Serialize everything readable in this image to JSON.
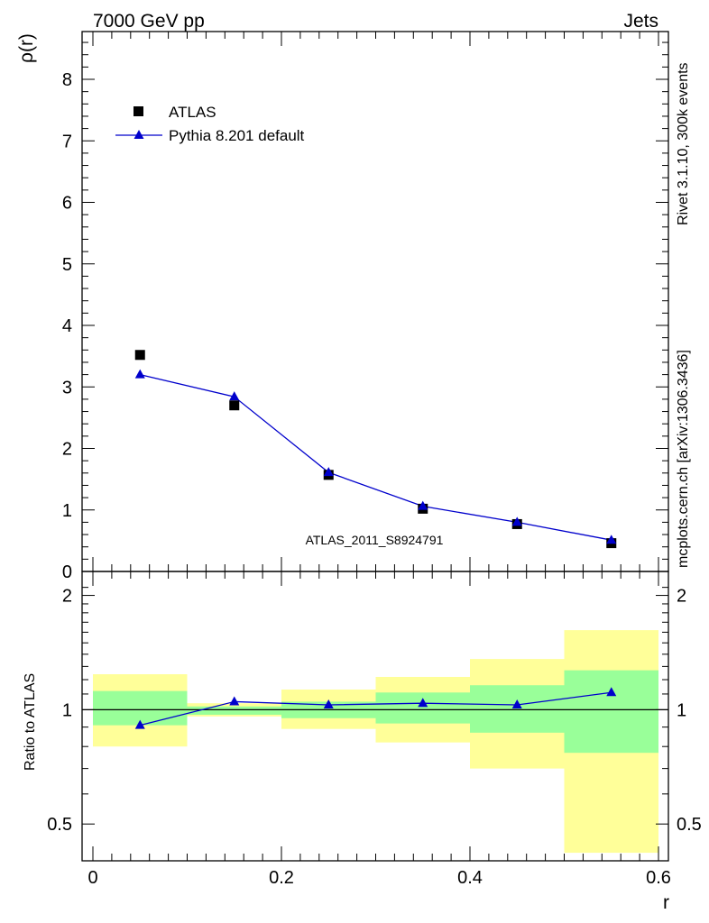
{
  "header": {
    "left": "7000 GeV pp",
    "right": "Jets"
  },
  "side_text": {
    "rivet": "Rivet 3.1.10,  300k events",
    "mcplots": "mcplots.cern.ch [arXiv:1306.3436]"
  },
  "analysis_label": "ATLAS_2011_S8924791",
  "chart_data": [
    {
      "type": "scatter",
      "ylabel": "ρ(r)",
      "xlabel": "r",
      "xlim": [
        0,
        0.6
      ],
      "ylim": [
        0,
        8.8
      ],
      "yticks": [
        0,
        1,
        2,
        3,
        4,
        5,
        6,
        7,
        8
      ],
      "x": [
        0.05,
        0.15,
        0.25,
        0.35,
        0.45,
        0.55
      ],
      "series": [
        {
          "name": "ATLAS",
          "marker": "square",
          "color": "#000000",
          "values": [
            3.52,
            2.7,
            1.57,
            1.02,
            0.77,
            0.46
          ]
        },
        {
          "name": "Pythia 8.201 default",
          "marker": "triangle",
          "line": true,
          "color": "#0000cc",
          "values": [
            3.2,
            2.84,
            1.61,
            1.06,
            0.8,
            0.51
          ]
        }
      ],
      "legend_position": "top-left"
    },
    {
      "type": "line",
      "ylabel": "Ratio to ATLAS",
      "xlabel": "r",
      "xlim": [
        0,
        0.6
      ],
      "ylim": [
        0.4,
        2.3
      ],
      "yticks": [
        0.5,
        1,
        2
      ],
      "xticks": [
        0,
        0.2,
        0.4,
        0.6
      ],
      "bins": [
        [
          0.0,
          0.1
        ],
        [
          0.1,
          0.2
        ],
        [
          0.2,
          0.3
        ],
        [
          0.3,
          0.4
        ],
        [
          0.4,
          0.5
        ],
        [
          0.5,
          0.6
        ]
      ],
      "band_inner": [
        [
          0.91,
          1.12
        ],
        [
          0.97,
          1.02
        ],
        [
          0.95,
          1.05
        ],
        [
          0.92,
          1.11
        ],
        [
          0.87,
          1.16
        ],
        [
          0.77,
          1.27
        ]
      ],
      "band_outer": [
        [
          0.8,
          1.24
        ],
        [
          0.96,
          1.04
        ],
        [
          0.89,
          1.13
        ],
        [
          0.82,
          1.22
        ],
        [
          0.7,
          1.36
        ],
        [
          0.42,
          1.62
        ]
      ],
      "x": [
        0.05,
        0.15,
        0.25,
        0.35,
        0.45,
        0.55
      ],
      "series": [
        {
          "name": "Pythia 8.201 default",
          "color": "#0000cc",
          "values": [
            0.91,
            1.05,
            1.03,
            1.04,
            1.03,
            1.11
          ]
        }
      ],
      "reference_line": 1,
      "colors": {
        "inner_band": "#99ff99",
        "outer_band": "#ffff99"
      }
    }
  ]
}
